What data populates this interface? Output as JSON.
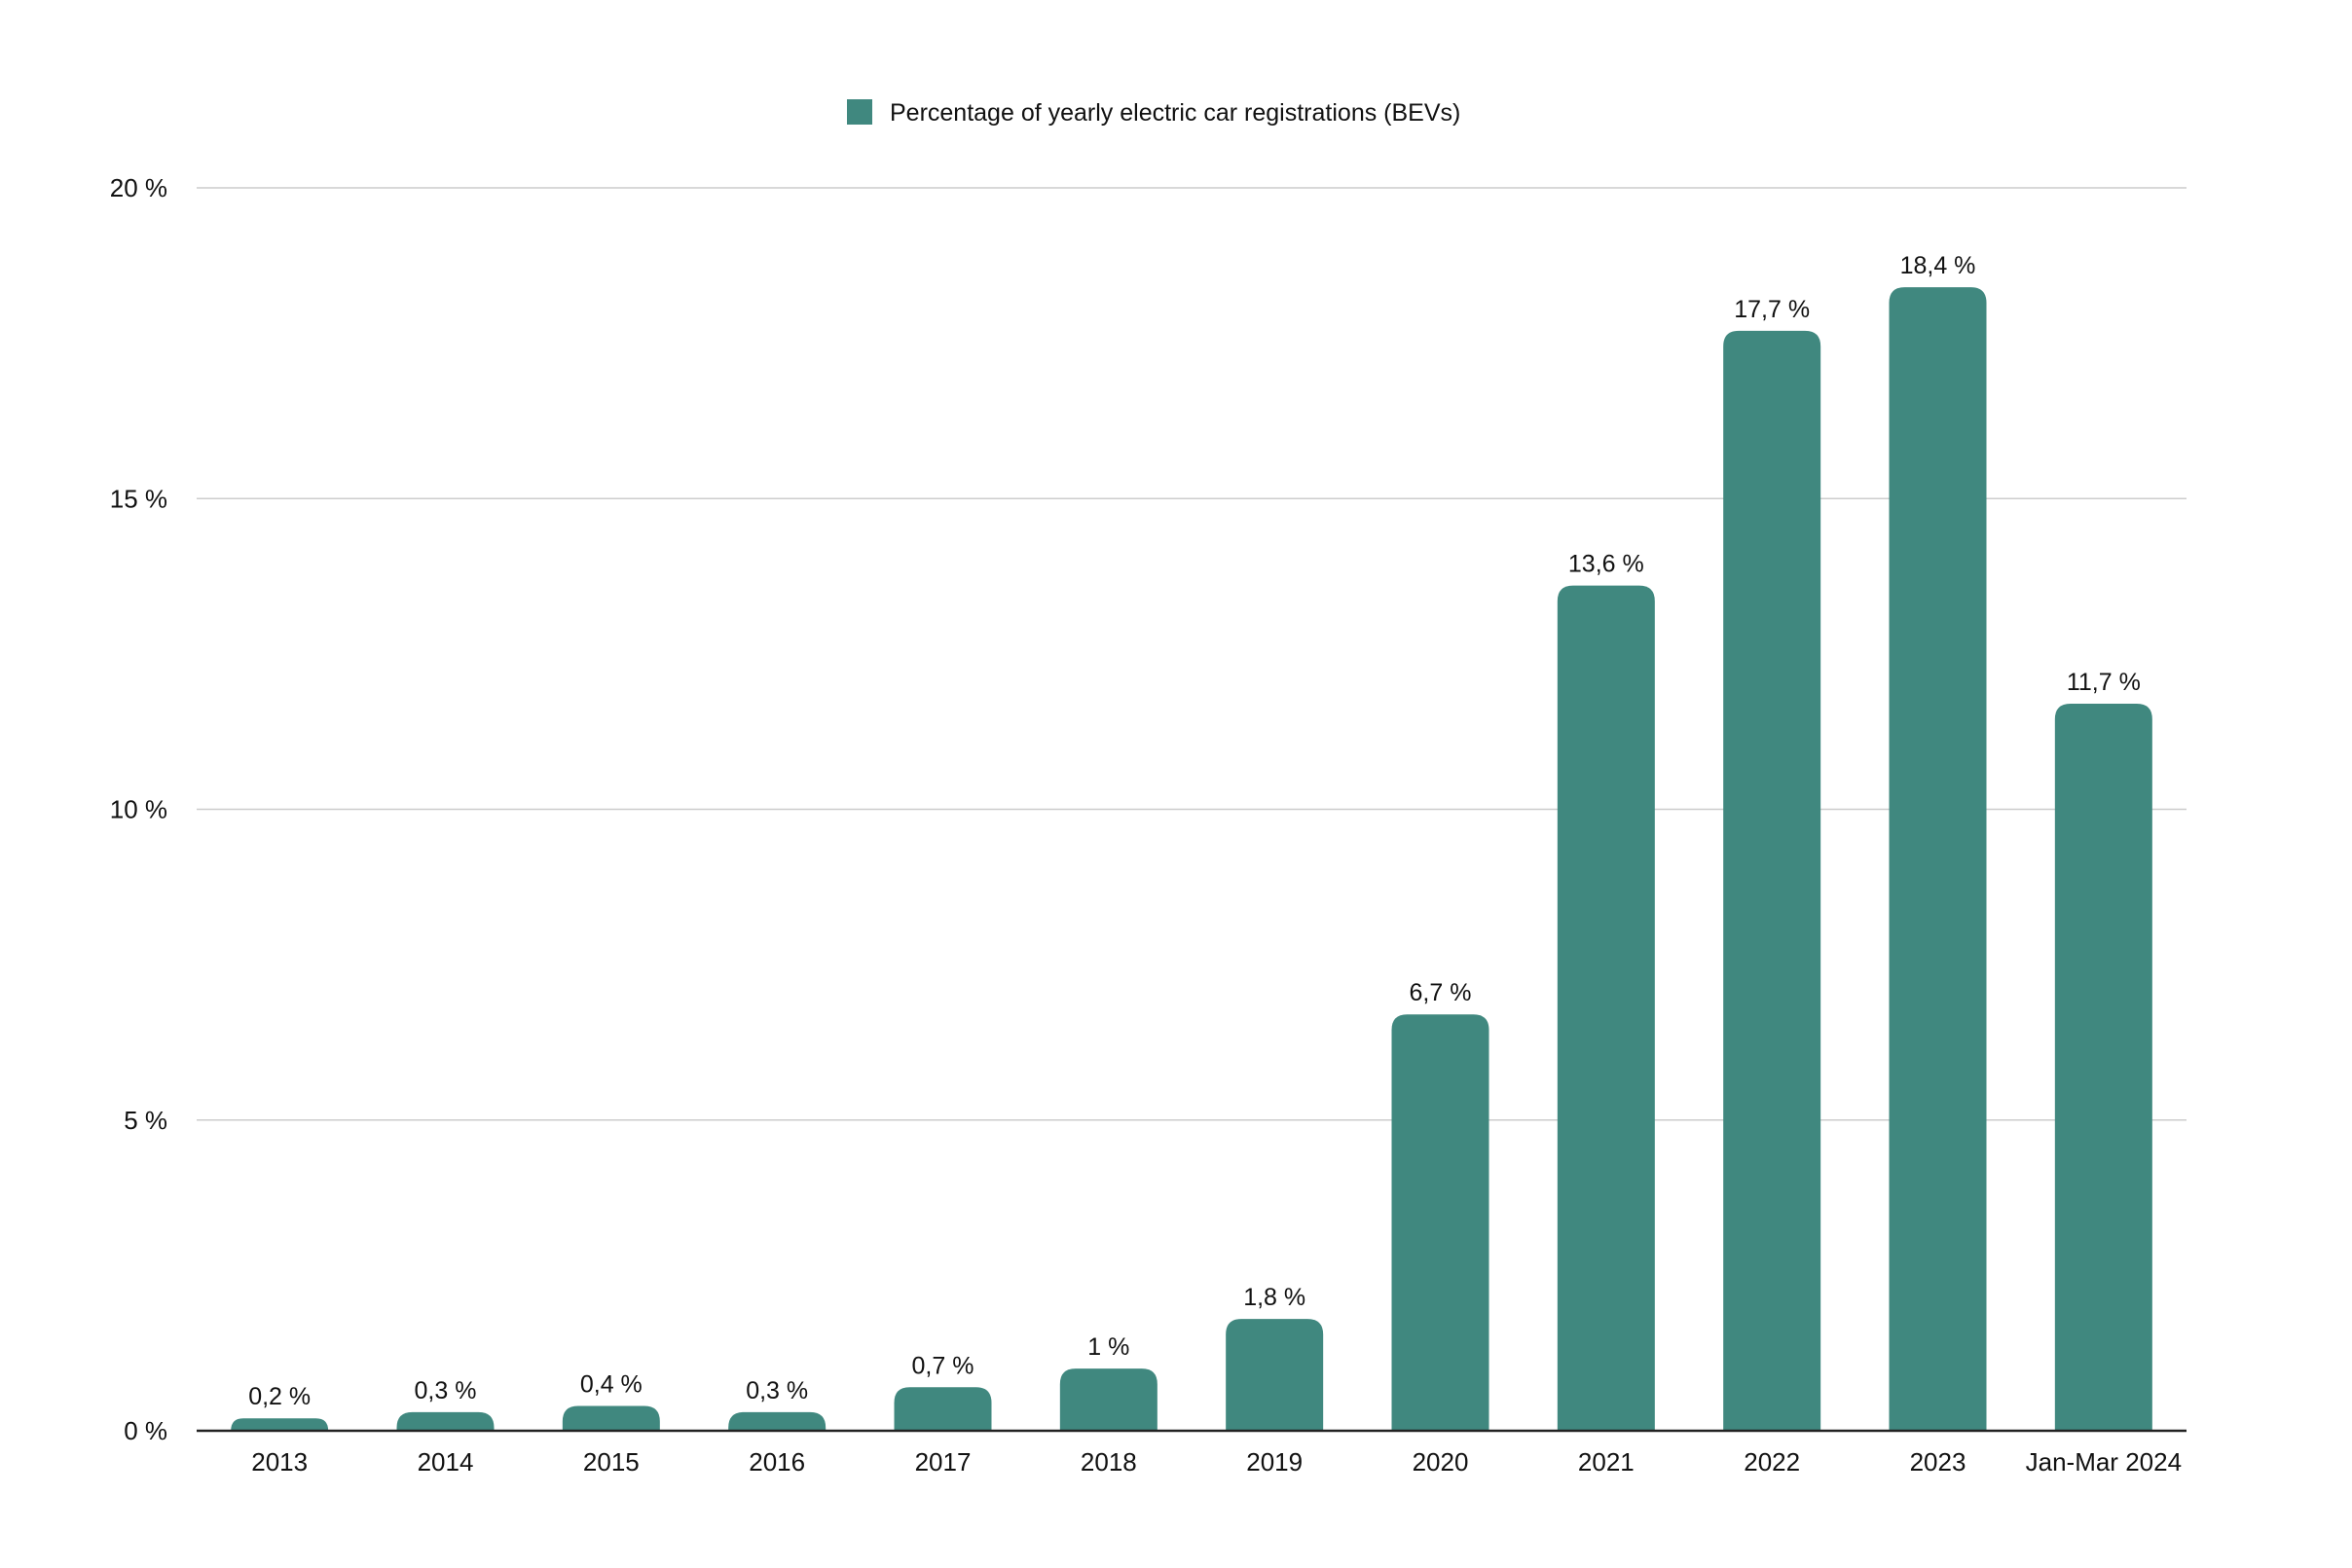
{
  "chart_data": {
    "type": "bar",
    "legend": {
      "position": "top-center",
      "entries": [
        "Percentage of yearly electric car registrations (BEVs)"
      ]
    },
    "categories": [
      "2013",
      "2014",
      "2015",
      "2016",
      "2017",
      "2018",
      "2019",
      "2020",
      "2021",
      "2022",
      "2023",
      "Jan-Mar 2024"
    ],
    "series": [
      {
        "name": "Percentage of yearly electric car registrations (BEVs)",
        "values": [
          0.2,
          0.3,
          0.4,
          0.3,
          0.7,
          1,
          1.8,
          6.7,
          13.6,
          17.7,
          18.4,
          11.7
        ],
        "data_labels": [
          "0,2 %",
          "0,3 %",
          "0,4 %",
          "0,3 %",
          "0,7 %",
          "1 %",
          "1,8 %",
          "6,7 %",
          "13,6 %",
          "17,7 %",
          "18,4 %",
          "11,7 %"
        ],
        "color": "#40887f"
      }
    ],
    "ylim": [
      0,
      20
    ],
    "yticks": [
      0,
      5,
      10,
      15,
      20
    ],
    "ytick_labels": [
      "0 %",
      "5 %",
      "10 %",
      "15 %",
      "20 %"
    ],
    "grid": true,
    "colors": {
      "bar": "#40887f",
      "grid": "#cccccc",
      "axis": "#222222",
      "text": "#111111"
    }
  }
}
